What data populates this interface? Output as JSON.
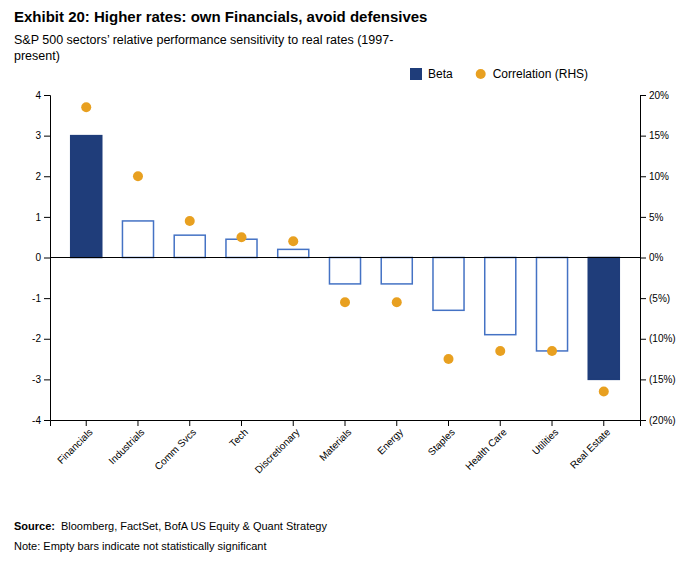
{
  "chart_data": {
    "type": "bar",
    "title": "Exhibit 20: Higher rates: own Financials, avoid defensives",
    "subtitle": "S&P 500 sectors’ relative performance sensitivity to real rates (1997-\npresent)",
    "categories": [
      "Financials",
      "Industrials",
      "Comm Svcs",
      "Tech",
      "Discretionary",
      "Materials",
      "Energy",
      "Staples",
      "Health Care",
      "Utilities",
      "Real Estate"
    ],
    "series": [
      {
        "name": "Beta",
        "type": "bar",
        "color": "#1f3d7a",
        "colors": [
          "#1f3d7a",
          "#4472c4",
          "#4472c4",
          "#4472c4",
          "#4472c4",
          "#4472c4",
          "#4472c4",
          "#4472c4",
          "#4472c4",
          "#4472c4",
          "#1f3d7a"
        ],
        "values": [
          3.0,
          0.9,
          0.55,
          0.45,
          0.2,
          -0.65,
          -0.65,
          -1.3,
          -1.9,
          -2.3,
          -3.0
        ]
      },
      {
        "name": "Correlation (RHS)",
        "type": "scatter",
        "color": "#e8a020",
        "axis": "y2",
        "values": [
          0.185,
          0.1,
          0.045,
          0.025,
          0.02,
          -0.055,
          -0.055,
          -0.125,
          -0.115,
          -0.115,
          -0.165
        ]
      }
    ],
    "ylim": [
      -4,
      4
    ],
    "yticks": [
      -4,
      -3,
      -2,
      -1,
      0,
      1,
      2,
      3,
      4
    ],
    "y2lim": [
      -0.2,
      0.2
    ],
    "y2ticks": [
      {
        "value": -0.2,
        "label": "(20%)"
      },
      {
        "value": -0.15,
        "label": "(15%)"
      },
      {
        "value": -0.1,
        "label": "(10%)"
      },
      {
        "value": -0.05,
        "label": "(5%)"
      },
      {
        "value": 0,
        "label": "0%"
      },
      {
        "value": 0.05,
        "label": "5%"
      },
      {
        "value": 0.1,
        "label": "10%"
      },
      {
        "value": 0.15,
        "label": "15%"
      },
      {
        "value": 0.2,
        "label": "20%"
      }
    ],
    "annotations": [
      "Source:",
      "Bloomberg, FactSet, BofA US Equity & Quant Strategy",
      "Note: Empty bars indicate not statistically significant"
    ],
    "legend": "top",
    "grid": false
  }
}
